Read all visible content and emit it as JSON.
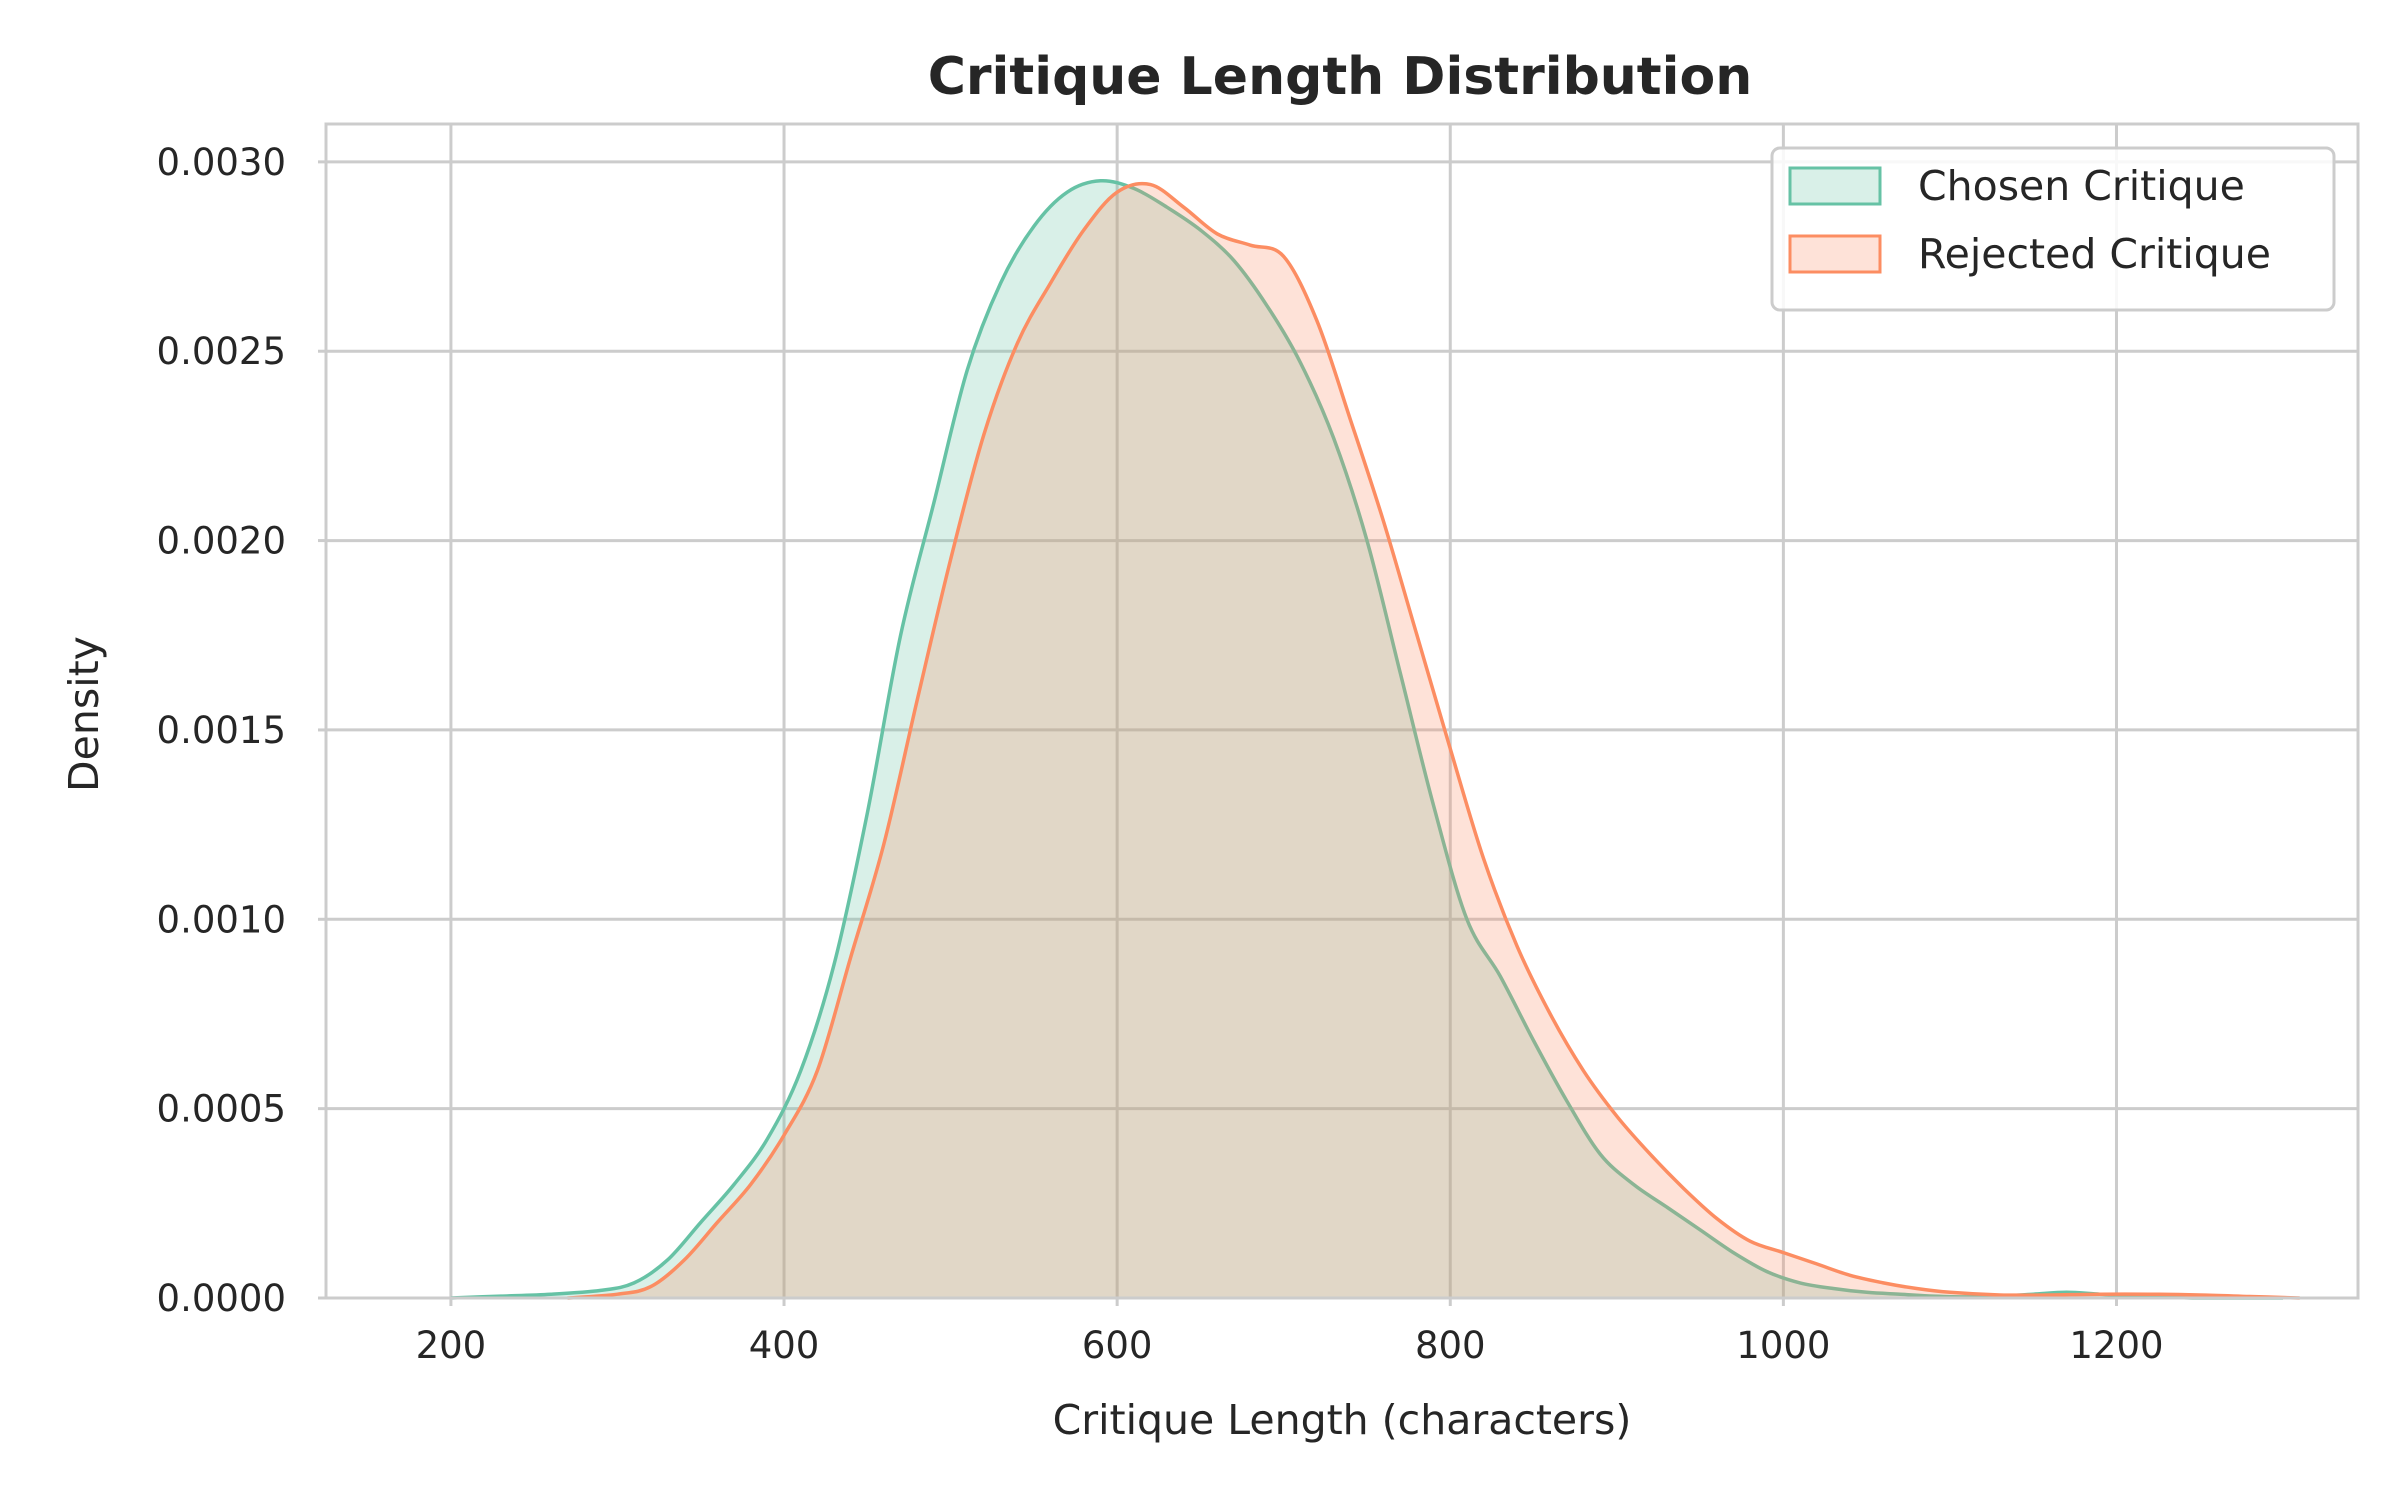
{
  "chart_data": {
    "type": "area",
    "title": "Critique Length Distribution",
    "xlabel": "Critique Length (characters)",
    "ylabel": "Density",
    "xlim": [
      125,
      1345
    ],
    "ylim": [
      0,
      0.0031
    ],
    "xticks": [
      {
        "value": 200,
        "label": "200"
      },
      {
        "value": 400,
        "label": "400"
      },
      {
        "value": 600,
        "label": "600"
      },
      {
        "value": 800,
        "label": "800"
      },
      {
        "value": 1000,
        "label": "1000"
      },
      {
        "value": 1200,
        "label": "1200"
      }
    ],
    "yticks": [
      {
        "value": 0.0,
        "label": "0.0000"
      },
      {
        "value": 0.0005,
        "label": "0.0005"
      },
      {
        "value": 0.001,
        "label": "0.0010"
      },
      {
        "value": 0.0015,
        "label": "0.0015"
      },
      {
        "value": 0.002,
        "label": "0.0020"
      },
      {
        "value": 0.0025,
        "label": "0.0025"
      },
      {
        "value": 0.003,
        "label": "0.0030"
      }
    ],
    "grid": true,
    "legend_position": "top-right",
    "series": [
      {
        "name": "Chosen Critique",
        "color": "#66c2a5",
        "x": [
          200,
          230,
          260,
          290,
          310,
          330,
          350,
          370,
          390,
          410,
          430,
          450,
          470,
          490,
          510,
          530,
          550,
          570,
          590,
          610,
          630,
          650,
          670,
          690,
          710,
          730,
          750,
          770,
          790,
          810,
          830,
          850,
          870,
          890,
          910,
          930,
          950,
          970,
          990,
          1010,
          1030,
          1050,
          1070,
          1090,
          1110,
          1130,
          1150,
          1170,
          1190,
          1210,
          1230,
          1250,
          1270,
          1300
        ],
        "y": [
          0.0,
          5e-06,
          1e-05,
          2e-05,
          4e-05,
          0.0001,
          0.0002,
          0.0003,
          0.00042,
          0.0006,
          0.00088,
          0.00128,
          0.00175,
          0.0021,
          0.00245,
          0.00268,
          0.00283,
          0.00292,
          0.00295,
          0.00293,
          0.00288,
          0.00282,
          0.00274,
          0.00262,
          0.00247,
          0.00227,
          0.002,
          0.00165,
          0.0013,
          0.001,
          0.00085,
          0.00068,
          0.00052,
          0.00038,
          0.0003,
          0.00024,
          0.00018,
          0.00012,
          7e-05,
          4e-05,
          2.5e-05,
          1.5e-05,
          1e-05,
          5e-06,
          3e-06,
          5e-06,
          1e-05,
          1.5e-05,
          1e-05,
          5e-06,
          2e-06,
          0.0,
          0.0,
          0.0
        ]
      },
      {
        "name": "Rejected Critique",
        "color": "#fc8d62",
        "x": [
          270,
          300,
          320,
          340,
          360,
          380,
          400,
          420,
          440,
          460,
          480,
          500,
          520,
          540,
          560,
          580,
          600,
          620,
          640,
          660,
          680,
          700,
          720,
          740,
          760,
          780,
          800,
          820,
          840,
          860,
          880,
          900,
          920,
          940,
          960,
          980,
          1000,
          1020,
          1040,
          1060,
          1080,
          1100,
          1130,
          1160,
          1190,
          1220,
          1250,
          1280,
          1310
        ],
        "y": [
          0.0,
          1e-05,
          3e-05,
          0.0001,
          0.0002,
          0.0003,
          0.00043,
          0.0006,
          0.0009,
          0.0012,
          0.00158,
          0.00195,
          0.00228,
          0.00252,
          0.00268,
          0.00282,
          0.00292,
          0.00294,
          0.00288,
          0.00281,
          0.00278,
          0.00275,
          0.00258,
          0.00232,
          0.00205,
          0.00175,
          0.00145,
          0.00116,
          0.00093,
          0.00075,
          0.0006,
          0.00048,
          0.00038,
          0.00029,
          0.00021,
          0.00015,
          0.00012,
          9e-05,
          6e-05,
          4e-05,
          2.5e-05,
          1.5e-05,
          8e-06,
          8e-06,
          1e-05,
          1e-05,
          8e-06,
          4e-06,
          0.0
        ]
      }
    ]
  }
}
